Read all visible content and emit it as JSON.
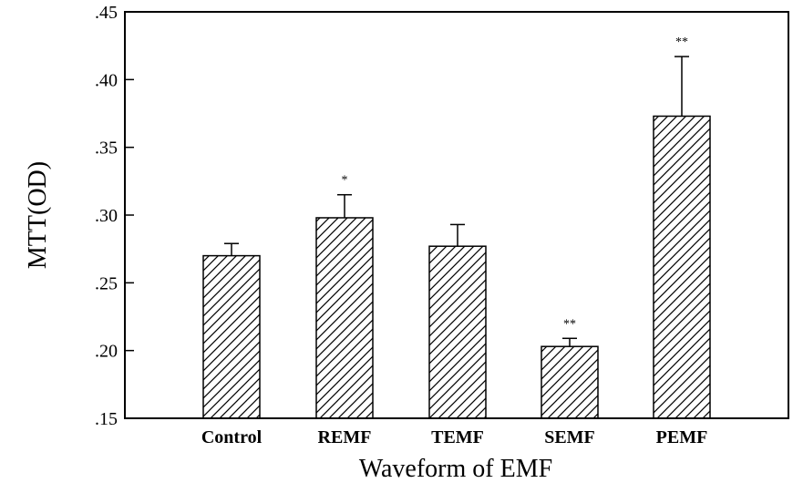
{
  "chart_data": {
    "type": "bar",
    "title": "",
    "xlabel": "Waveform of EMF",
    "ylabel": "MTT(OD)",
    "ylim": [
      0.15,
      0.45
    ],
    "yticks": [
      {
        "value": 0.15,
        "label": ".15"
      },
      {
        "value": 0.2,
        "label": ".20"
      },
      {
        "value": 0.25,
        "label": ".25"
      },
      {
        "value": 0.3,
        "label": ".30"
      },
      {
        "value": 0.35,
        "label": ".35"
      },
      {
        "value": 0.4,
        "label": ".40"
      },
      {
        "value": 0.45,
        "label": ".45"
      }
    ],
    "categories": [
      "Control",
      "REMF",
      "TEMF",
      "SEMF",
      "PEMF"
    ],
    "values": [
      0.27,
      0.298,
      0.277,
      0.203,
      0.373
    ],
    "error_upper": [
      0.279,
      0.315,
      0.293,
      0.209,
      0.417
    ],
    "significance": [
      "",
      "*",
      "",
      "**",
      "**"
    ],
    "bar_fill": "hatched",
    "grid": false,
    "legend": "none"
  }
}
